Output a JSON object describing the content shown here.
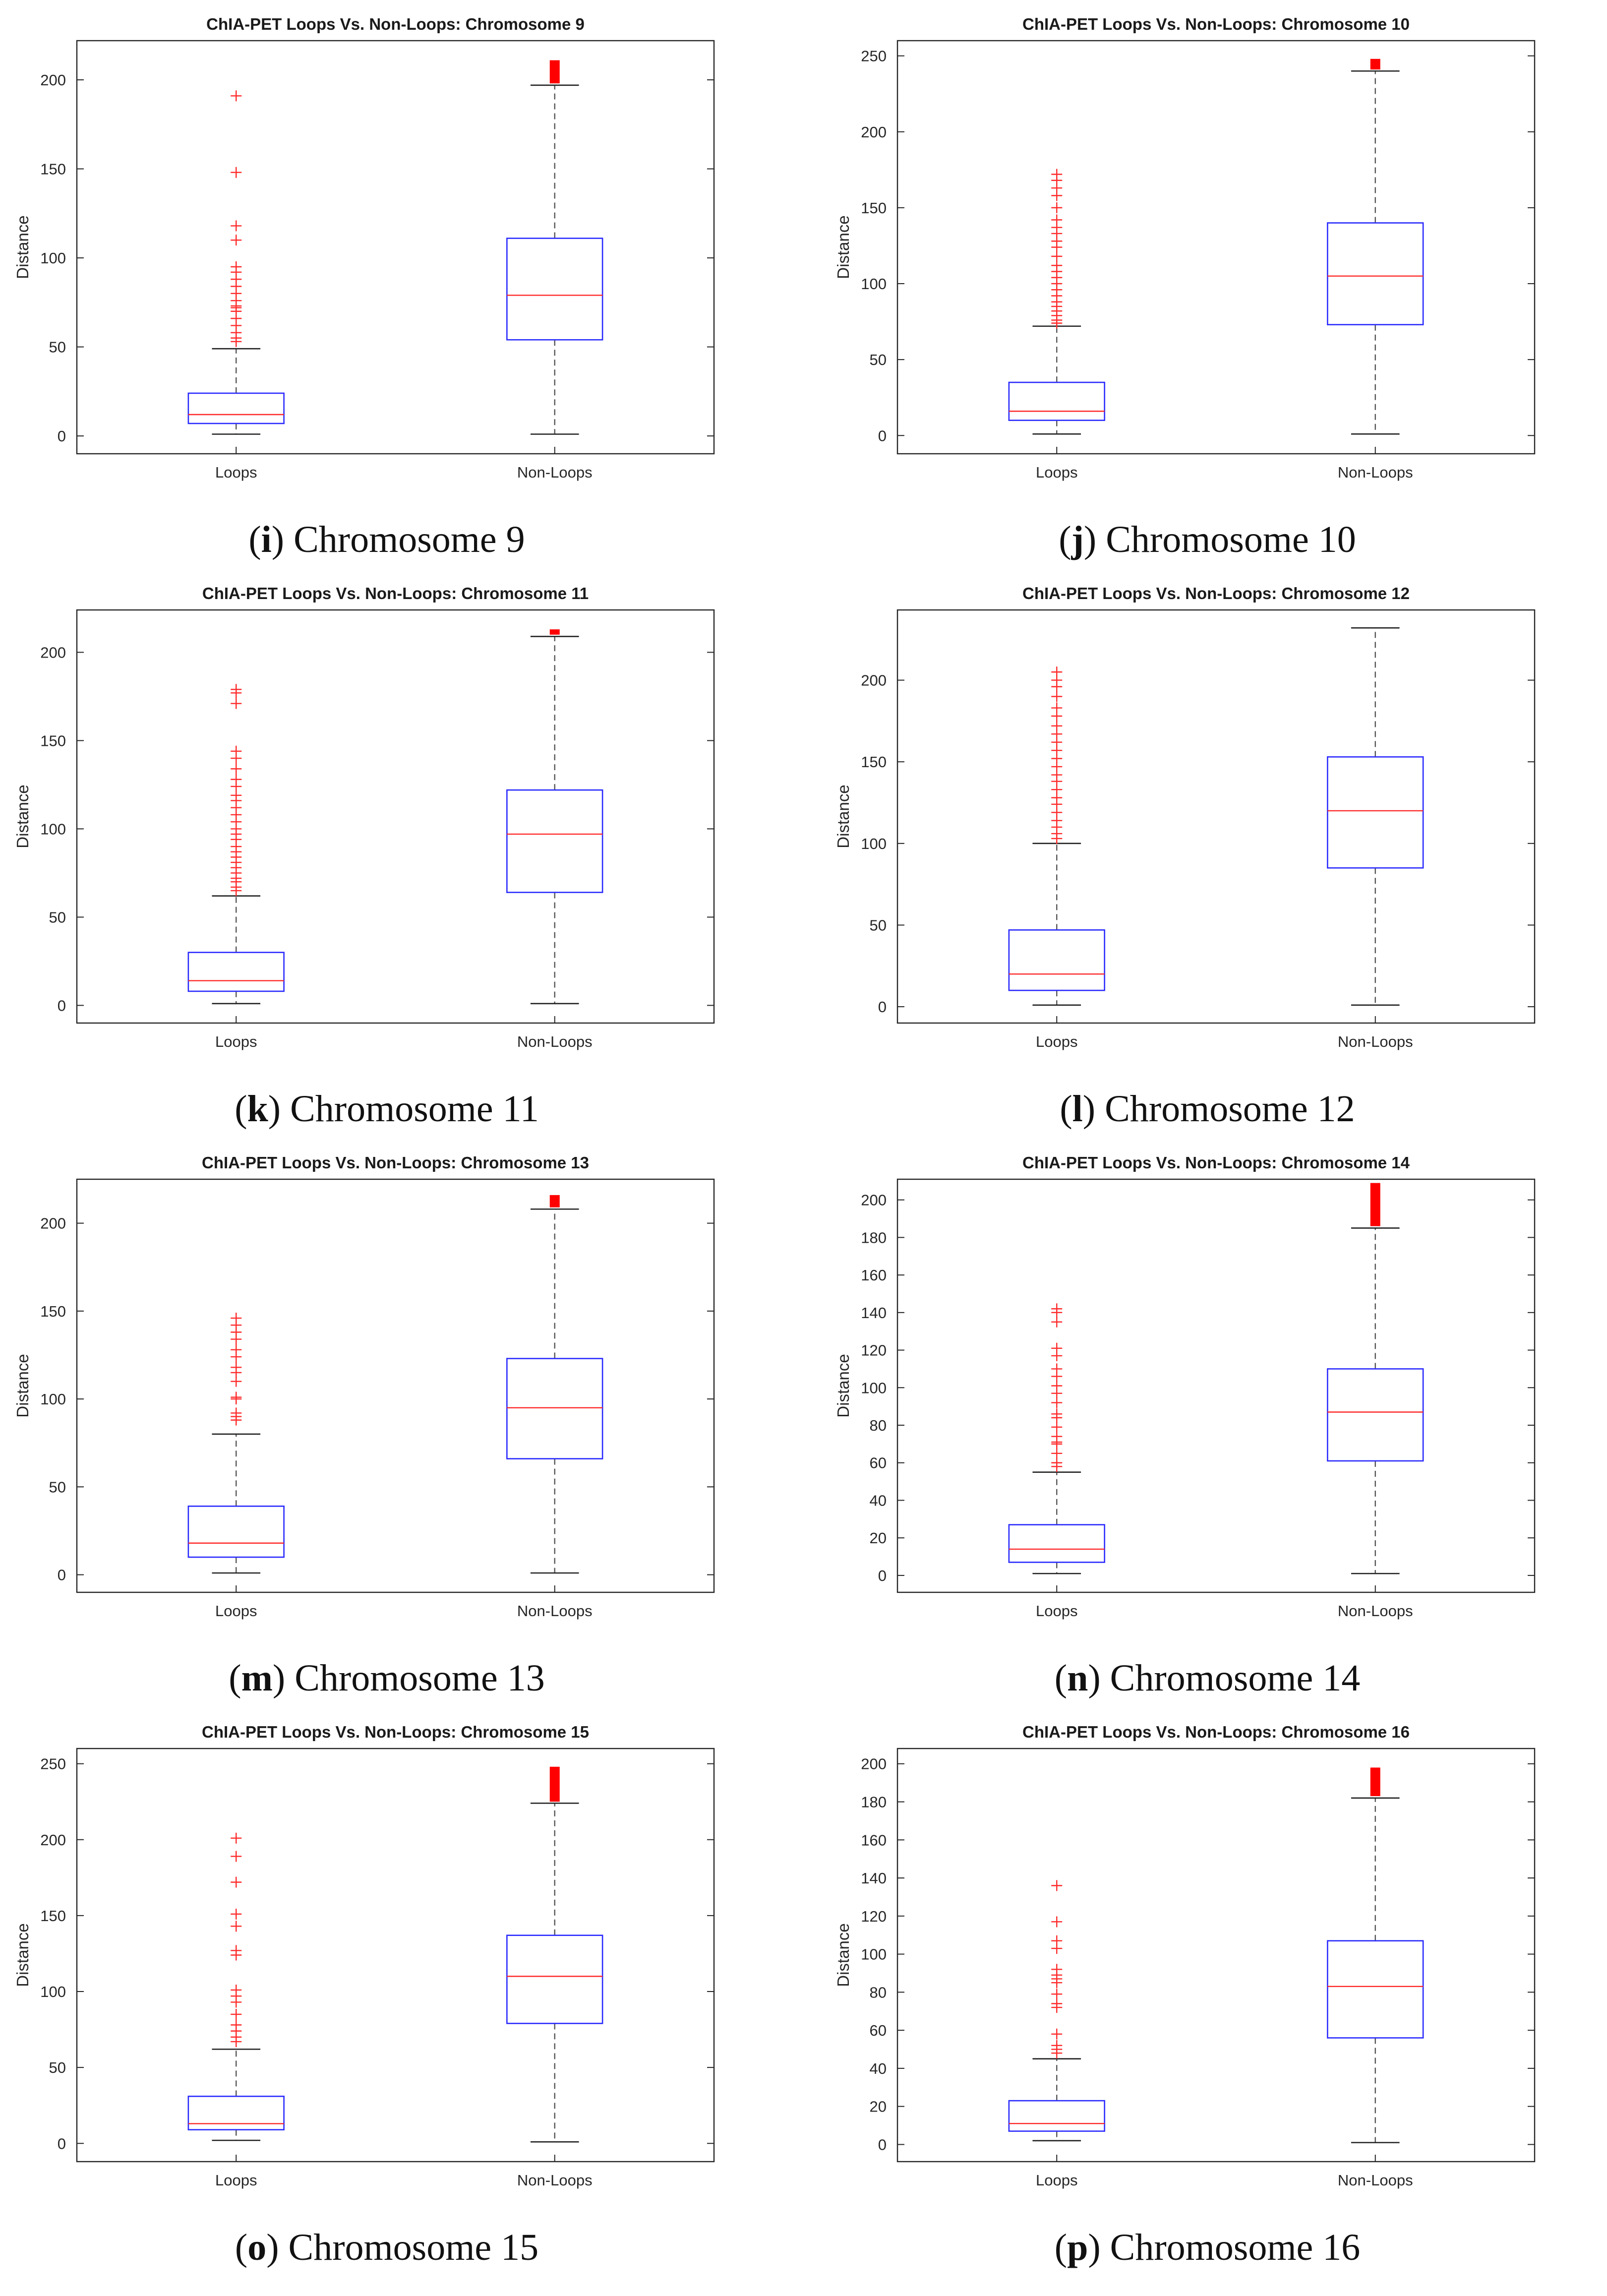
{
  "chart_data": [
    {
      "panel_letter": "i",
      "caption": "Chromosome 9",
      "type": "box",
      "title": "ChIA-PET Loops Vs. Non-Loops: Chromosome 9",
      "xlabel": "",
      "ylabel": "Distance",
      "categories": [
        "Loops",
        "Non-Loops"
      ],
      "ylim": [
        -10,
        222
      ],
      "yticks": [
        0,
        50,
        100,
        150,
        200
      ],
      "boxes": [
        {
          "name": "Loops",
          "whisker_low": 1,
          "q1": 7,
          "median": 12,
          "q3": 24,
          "whisker_high": 49,
          "outliers": [
            191,
            148,
            118,
            110,
            95,
            92,
            88,
            84,
            80,
            76,
            73,
            72,
            70,
            66,
            62,
            58,
            55,
            53
          ]
        },
        {
          "name": "Non-Loops",
          "whisker_low": 1,
          "q1": 54,
          "median": 79,
          "q3": 111,
          "whisker_high": 197,
          "outlier_band": [
            198,
            211
          ]
        }
      ]
    },
    {
      "panel_letter": "j",
      "caption": "Chromosome 10",
      "type": "box",
      "title": "ChIA-PET Loops Vs. Non-Loops: Chromosome 10",
      "xlabel": "",
      "ylabel": "Distance",
      "categories": [
        "Loops",
        "Non-Loops"
      ],
      "ylim": [
        -12,
        260
      ],
      "yticks": [
        0,
        50,
        100,
        150,
        200,
        250
      ],
      "boxes": [
        {
          "name": "Loops",
          "whisker_low": 1,
          "q1": 10,
          "median": 16,
          "q3": 35,
          "whisker_high": 72,
          "outliers": [
            172,
            168,
            163,
            158,
            150,
            142,
            137,
            133,
            128,
            124,
            118,
            112,
            108,
            104,
            100,
            96,
            92,
            88,
            85,
            82,
            79,
            76,
            74
          ]
        },
        {
          "name": "Non-Loops",
          "whisker_low": 1,
          "q1": 73,
          "median": 105,
          "q3": 140,
          "whisker_high": 240,
          "outlier_band": [
            241,
            248
          ]
        }
      ]
    },
    {
      "panel_letter": "k",
      "caption": "Chromosome 11",
      "type": "box",
      "title": "ChIA-PET Loops Vs. Non-Loops: Chromosome 11",
      "xlabel": "",
      "ylabel": "Distance",
      "categories": [
        "Loops",
        "Non-Loops"
      ],
      "ylim": [
        -10,
        224
      ],
      "yticks": [
        0,
        50,
        100,
        150,
        200
      ],
      "boxes": [
        {
          "name": "Loops",
          "whisker_low": 1,
          "q1": 8,
          "median": 14,
          "q3": 30,
          "whisker_high": 62,
          "outliers": [
            179,
            177,
            171,
            144,
            140,
            134,
            128,
            124,
            119,
            116,
            112,
            108,
            104,
            100,
            97,
            94,
            90,
            87,
            84,
            81,
            78,
            75,
            72,
            70,
            67,
            65
          ]
        },
        {
          "name": "Non-Loops",
          "whisker_low": 1,
          "q1": 64,
          "median": 97,
          "q3": 122,
          "whisker_high": 209,
          "outlier_band": [
            210,
            213
          ]
        }
      ]
    },
    {
      "panel_letter": "l",
      "caption": "Chromosome 12",
      "type": "box",
      "title": "ChIA-PET Loops Vs. Non-Loops: Chromosome 12",
      "xlabel": "",
      "ylabel": "Distance",
      "categories": [
        "Loops",
        "Non-Loops"
      ],
      "ylim": [
        -10,
        243
      ],
      "yticks": [
        0,
        50,
        100,
        150,
        200
      ],
      "boxes": [
        {
          "name": "Loops",
          "whisker_low": 1,
          "q1": 10,
          "median": 20,
          "q3": 47,
          "whisker_high": 100,
          "outliers": [
            205,
            200,
            196,
            190,
            183,
            178,
            172,
            167,
            162,
            157,
            152,
            147,
            142,
            138,
            133,
            128,
            124,
            119,
            114,
            110,
            106,
            103
          ]
        },
        {
          "name": "Non-Loops",
          "whisker_low": 1,
          "q1": 85,
          "median": 120,
          "q3": 153,
          "whisker_high": 232
        }
      ]
    },
    {
      "panel_letter": "m",
      "caption": "Chromosome 13",
      "type": "box",
      "title": "ChIA-PET Loops Vs. Non-Loops: Chromosome 13",
      "xlabel": "",
      "ylabel": "Distance",
      "categories": [
        "Loops",
        "Non-Loops"
      ],
      "ylim": [
        -10,
        225
      ],
      "yticks": [
        0,
        50,
        100,
        150,
        200
      ],
      "boxes": [
        {
          "name": "Loops",
          "whisker_low": 1,
          "q1": 10,
          "median": 18,
          "q3": 39,
          "whisker_high": 80,
          "outliers": [
            146,
            142,
            138,
            134,
            128,
            124,
            118,
            115,
            110,
            101,
            100,
            92,
            90,
            88
          ]
        },
        {
          "name": "Non-Loops",
          "whisker_low": 1,
          "q1": 66,
          "median": 95,
          "q3": 123,
          "whisker_high": 208,
          "outlier_band": [
            209,
            216
          ]
        }
      ]
    },
    {
      "panel_letter": "n",
      "caption": "Chromosome 14",
      "type": "box",
      "title": "ChIA-PET Loops Vs. Non-Loops: Chromosome 14",
      "xlabel": "",
      "ylabel": "Distance",
      "categories": [
        "Loops",
        "Non-Loops"
      ],
      "ylim": [
        -9,
        211
      ],
      "yticks": [
        0,
        20,
        40,
        60,
        80,
        100,
        120,
        140,
        160,
        180,
        200
      ],
      "boxes": [
        {
          "name": "Loops",
          "whisker_low": 1,
          "q1": 7,
          "median": 14,
          "q3": 27,
          "whisker_high": 55,
          "outliers": [
            142,
            140,
            135,
            121,
            117,
            110,
            106,
            101,
            97,
            92,
            86,
            84,
            79,
            74,
            71,
            70,
            65,
            60,
            58
          ]
        },
        {
          "name": "Non-Loops",
          "whisker_low": 1,
          "q1": 61,
          "median": 87,
          "q3": 110,
          "whisker_high": 185,
          "outlier_band": [
            186,
            209
          ]
        }
      ]
    },
    {
      "panel_letter": "o",
      "caption": "Chromosome 15",
      "type": "box",
      "title": "ChIA-PET Loops Vs. Non-Loops: Chromosome 15",
      "xlabel": "",
      "ylabel": "Distance",
      "categories": [
        "Loops",
        "Non-Loops"
      ],
      "ylim": [
        -12,
        260
      ],
      "yticks": [
        0,
        50,
        100,
        150,
        200,
        250
      ],
      "boxes": [
        {
          "name": "Loops",
          "whisker_low": 2,
          "q1": 9,
          "median": 13,
          "q3": 31,
          "whisker_high": 62,
          "outliers": [
            201,
            189,
            172,
            151,
            143,
            127,
            124,
            101,
            97,
            93,
            85,
            78,
            74,
            70,
            67
          ]
        },
        {
          "name": "Non-Loops",
          "whisker_low": 1,
          "q1": 79,
          "median": 110,
          "q3": 137,
          "whisker_high": 224,
          "outlier_band": [
            225,
            248
          ]
        }
      ]
    },
    {
      "panel_letter": "p",
      "caption": "Chromosome 16",
      "type": "box",
      "title": "ChIA-PET Loops Vs. Non-Loops: Chromosome 16",
      "xlabel": "",
      "ylabel": "Distance",
      "categories": [
        "Loops",
        "Non-Loops"
      ],
      "ylim": [
        -9,
        208
      ],
      "yticks": [
        0,
        20,
        40,
        60,
        80,
        100,
        120,
        140,
        160,
        180,
        200
      ],
      "boxes": [
        {
          "name": "Loops",
          "whisker_low": 2,
          "q1": 7,
          "median": 11,
          "q3": 23,
          "whisker_high": 45,
          "outliers": [
            136,
            117,
            107,
            103,
            92,
            89,
            87,
            85,
            79,
            74,
            72,
            58,
            52,
            50,
            48
          ]
        },
        {
          "name": "Non-Loops",
          "whisker_low": 1,
          "q1": 56,
          "median": 83,
          "q3": 107,
          "whisker_high": 182,
          "outlier_band": [
            183,
            198
          ]
        }
      ]
    }
  ]
}
